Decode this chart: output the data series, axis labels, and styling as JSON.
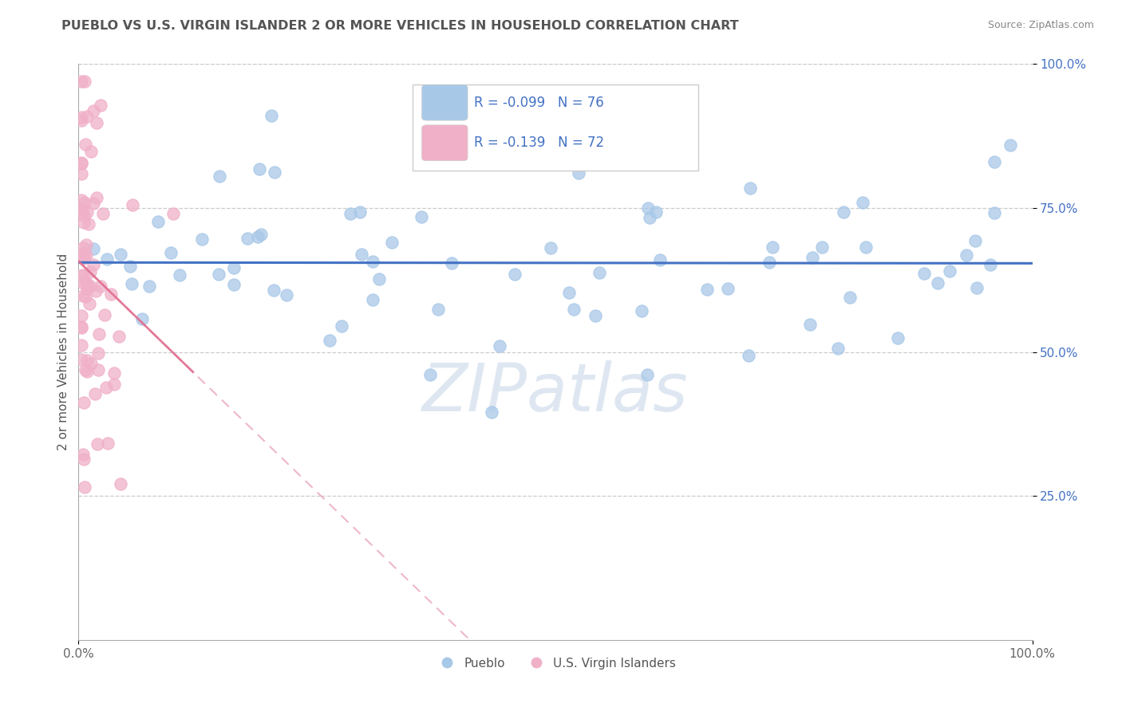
{
  "title": "PUEBLO VS U.S. VIRGIN ISLANDER 2 OR MORE VEHICLES IN HOUSEHOLD CORRELATION CHART",
  "source": "Source: ZipAtlas.com",
  "ylabel": "2 or more Vehicles in Household",
  "xlim": [
    0,
    1
  ],
  "ylim": [
    0,
    1
  ],
  "xticks": [
    0.0,
    1.0
  ],
  "xticklabels": [
    "0.0%",
    "100.0%"
  ],
  "yticks": [
    0.25,
    0.5,
    0.75,
    1.0
  ],
  "yticklabels": [
    "25.0%",
    "50.0%",
    "75.0%",
    "100.0%"
  ],
  "pueblo_color": "#a8c8e8",
  "virgin_color": "#f0b0c8",
  "pueblo_edge_color": "#a8c8e8",
  "virgin_edge_color": "#f0b0c8",
  "pueblo_line_color": "#4472c4",
  "virgin_line_color": "#e07090",
  "tick_color": "#4472c4",
  "title_color": "#555555",
  "ylabel_color": "#555555",
  "grid_color": "#cccccc",
  "pueblo_R": -0.099,
  "pueblo_N": 76,
  "virgin_R": -0.139,
  "virgin_N": 72,
  "legend_label_1": "Pueblo",
  "legend_label_2": "U.S. Virgin Islanders",
  "watermark": "ZIPatlas",
  "watermark_color": "#c8d8e8",
  "background_color": "#ffffff"
}
